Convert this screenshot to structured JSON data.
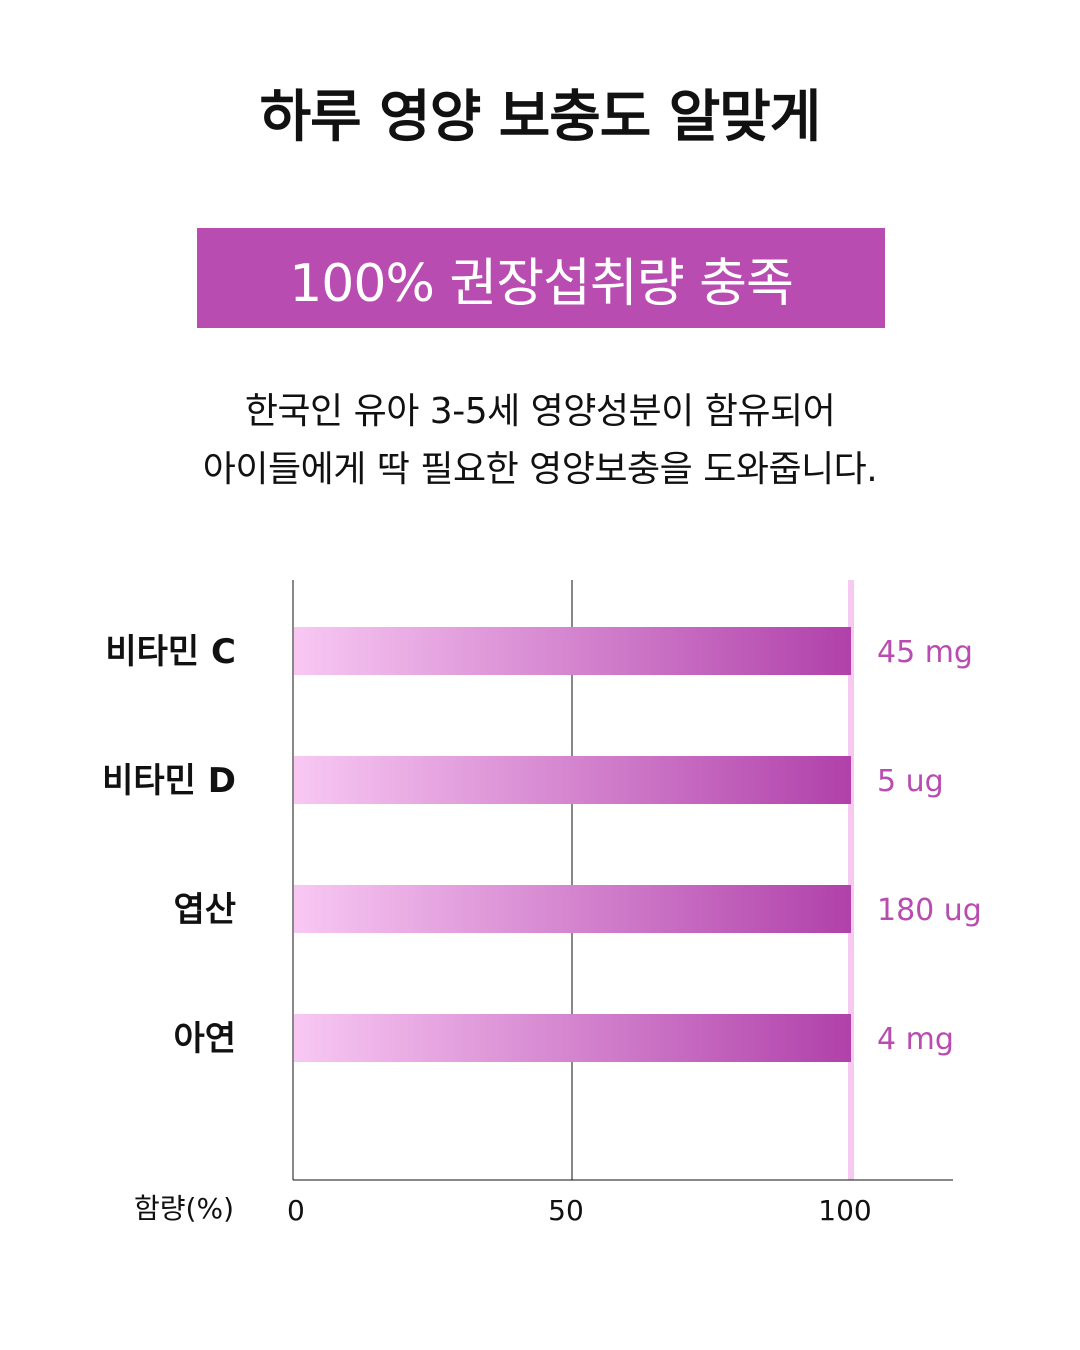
{
  "header": {
    "title": "하루 영양 보충도 알맞게",
    "banner": "100% 권장섭취량 충족",
    "desc_line1": "한국인 유아 3-5세 영양성분이 함유되어",
    "desc_line2": "아이들에게 딱 필요한 영양보충을 도와줍니다."
  },
  "colors": {
    "banner": "#b84cb0",
    "bar_start": "#f8c8f3",
    "bar_end": "#b041aa",
    "value_text": "#b84cb0",
    "ref_line": "#f5c9f0",
    "axis": "#111111"
  },
  "chart_data": {
    "type": "bar",
    "orientation": "horizontal",
    "categories": [
      "비타민 C",
      "비타민 D",
      "엽산",
      "아연"
    ],
    "values": [
      100,
      100,
      100,
      100
    ],
    "value_labels": [
      "45 mg",
      "5 ug",
      "180 ug",
      "4 mg"
    ],
    "xlabel": "함량(%)",
    "xlim": [
      0,
      120
    ],
    "xticks": [
      0,
      50,
      100
    ],
    "gridlines": [
      0,
      50
    ],
    "reference_line": 100,
    "legend": "none"
  }
}
